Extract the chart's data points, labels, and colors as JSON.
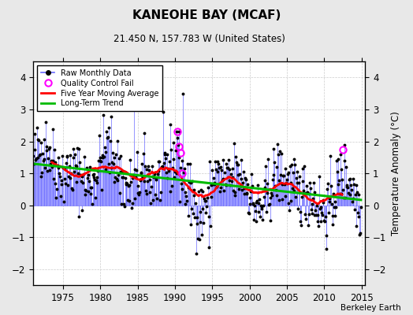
{
  "title": "KANEOHE BAY (MCAF)",
  "subtitle": "21.450 N, 157.783 W (United States)",
  "ylabel": "Temperature Anomaly (°C)",
  "attribution": "Berkeley Earth",
  "xlim": [
    1971.0,
    2015.5
  ],
  "ylim": [
    -2.5,
    4.5
  ],
  "yticks": [
    -2,
    -1,
    0,
    1,
    2,
    3,
    4
  ],
  "xticks": [
    1975,
    1980,
    1985,
    1990,
    1995,
    2000,
    2005,
    2010,
    2015
  ],
  "background_color": "#e8e8e8",
  "plot_bg_color": "#ffffff",
  "raw_line_color": "#6666ff",
  "raw_marker_color": "#000000",
  "moving_avg_color": "#ff0000",
  "trend_color": "#00bb00",
  "qc_fail_color": "#ff00ff",
  "seed": 42,
  "figsize": [
    5.24,
    4.0
  ],
  "dpi": 100
}
